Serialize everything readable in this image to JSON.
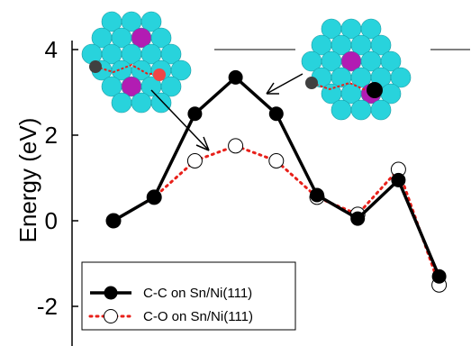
{
  "chart_data": {
    "type": "line",
    "ylabel": "Energy (eV)",
    "xlabel": "",
    "title": "",
    "ylim": [
      -2.8,
      4.3
    ],
    "yticks": [
      -2,
      0,
      2,
      4
    ],
    "grid": false,
    "legend_position": "bottom-left",
    "x": [
      0,
      1,
      2,
      3,
      4,
      5,
      6,
      7,
      8,
      9
    ],
    "series": [
      {
        "name": "C-C on Sn/Ni(111)",
        "color": "#000000",
        "line_style": "solid",
        "marker": "filled-circle",
        "values": [
          0.0,
          0.55,
          2.5,
          3.35,
          2.5,
          0.6,
          0.05,
          0.95,
          -1.3
        ],
        "x": [
          0,
          1,
          2,
          3,
          4,
          5,
          6,
          7,
          8
        ]
      },
      {
        "name": "C-O on Sn/Ni(111)",
        "color": "#e8201a",
        "line_style": "dotted",
        "marker": "open-circle",
        "values": [
          0.0,
          0.55,
          1.4,
          1.75,
          1.4,
          0.55,
          0.15,
          1.2,
          -1.5
        ],
        "x": [
          0,
          1,
          2,
          3,
          4,
          5,
          6,
          7,
          8
        ]
      }
    ]
  },
  "colors": {
    "ni_atom": "#28d3dc",
    "sn_atom": "#b21cb3",
    "c_atom": "#404040",
    "o_atom": "#f04545"
  },
  "insets": {
    "left_icon": "catalyst-surface-c-o-transition-state",
    "right_icon": "catalyst-surface-c-c-transition-state"
  }
}
